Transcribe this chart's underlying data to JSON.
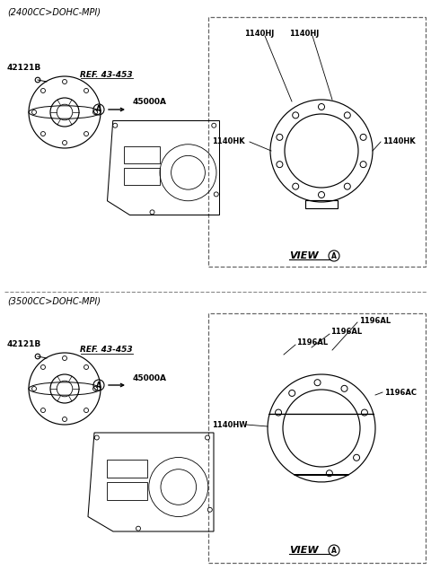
{
  "bg_color": "#ffffff",
  "top_label": "(2400CC>DOHC-MPI)",
  "bottom_label": "(3500CC>DOHC-MPI)",
  "top_parts": {
    "part1": "42121B",
    "ref": "REF. 43-453",
    "main": "45000A",
    "view_label": "VIEW",
    "labels_top": [
      "1140HJ",
      "1140HJ"
    ],
    "labels_left": "1140HK",
    "labels_right": "1140HK"
  },
  "bottom_parts": {
    "part1": "42121B",
    "ref": "REF. 43-453",
    "main": "45000A",
    "view_label": "VIEW",
    "labels_top1": "1196AL",
    "labels_top2": "1196AL",
    "labels_top3": "1196AL",
    "labels_right": "1196AC",
    "labels_left": "1140HW"
  }
}
